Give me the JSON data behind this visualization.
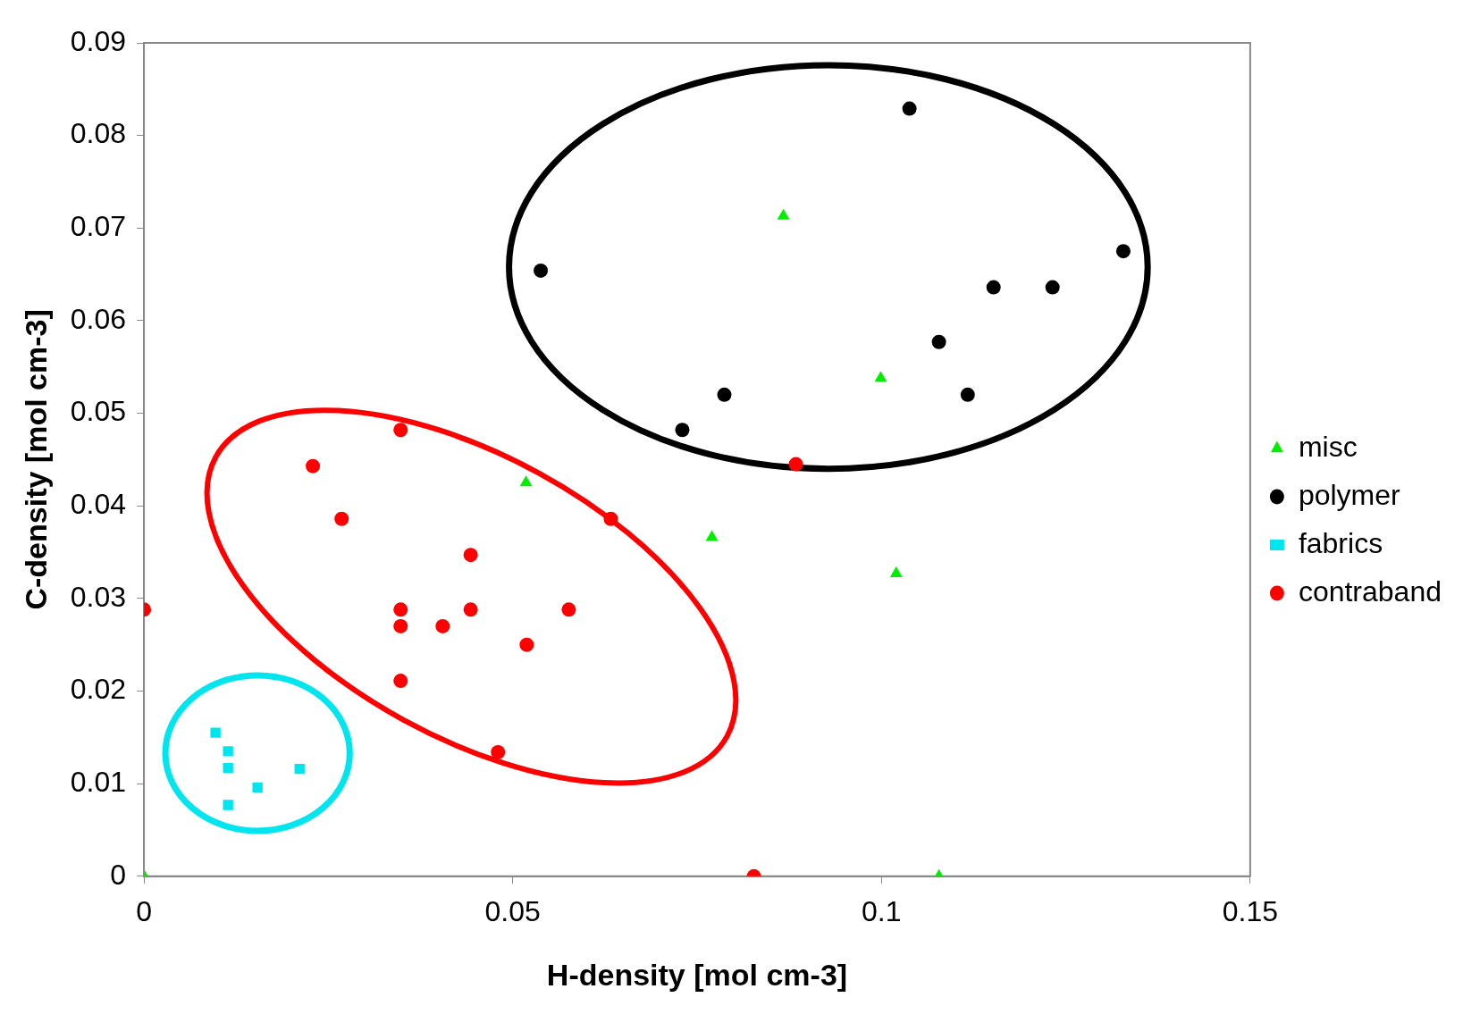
{
  "chart_data": {
    "type": "scatter",
    "xlabel": "H-density [mol cm-3]",
    "ylabel": "C-density [mol cm-3]",
    "xlim": [
      0,
      0.15
    ],
    "xticks": [
      0,
      0.05,
      0.1,
      0.15
    ],
    "ylim": [
      0,
      0.09
    ],
    "yticks": [
      0,
      0.01,
      0.02,
      0.03,
      0.04,
      0.05,
      0.06,
      0.07,
      0.08,
      0.09
    ],
    "grid": false,
    "legend": "right",
    "series": [
      {
        "name": "misc",
        "color": "#00ee00",
        "marker": "triangle",
        "x": [
          0,
          0.0867,
          0.0999,
          0.0518,
          0.077,
          0.102,
          0.1078
        ],
        "values": [
          0,
          0.0713,
          0.0538,
          0.0425,
          0.0366,
          0.0327,
          0
        ]
      },
      {
        "name": "polymer",
        "color": "#000000",
        "marker": "circle",
        "x": [
          0.1038,
          0.0538,
          0.1328,
          0.1152,
          0.1232,
          0.1078,
          0.0787,
          0.1117,
          0.073
        ],
        "values": [
          0.0829,
          0.0654,
          0.0675,
          0.0636,
          0.0636,
          0.0577,
          0.052,
          0.052,
          0.0482
        ]
      },
      {
        "name": "fabrics",
        "color": "#00e5ee",
        "marker": "square",
        "x": [
          0.0097,
          0.0114,
          0.0114,
          0.0154,
          0.0211,
          0.0114
        ],
        "values": [
          0.0155,
          0.0135,
          0.0117,
          0.0096,
          0.0116,
          0.0077
        ]
      },
      {
        "name": "contraband",
        "color": "#ff0000",
        "marker": "circle",
        "x": [
          0,
          0.0348,
          0.0229,
          0.0268,
          0.0633,
          0.0443,
          0.0348,
          0.0443,
          0.0576,
          0.0348,
          0.0405,
          0.0519,
          0.0348,
          0.048,
          0.0827,
          0.0884
        ],
        "values": [
          0.0288,
          0.0482,
          0.0443,
          0.0386,
          0.0386,
          0.0347,
          0.0288,
          0.0288,
          0.0288,
          0.027,
          0.027,
          0.025,
          0.0211,
          0.0134,
          0,
          0.0445
        ]
      }
    ]
  }
}
